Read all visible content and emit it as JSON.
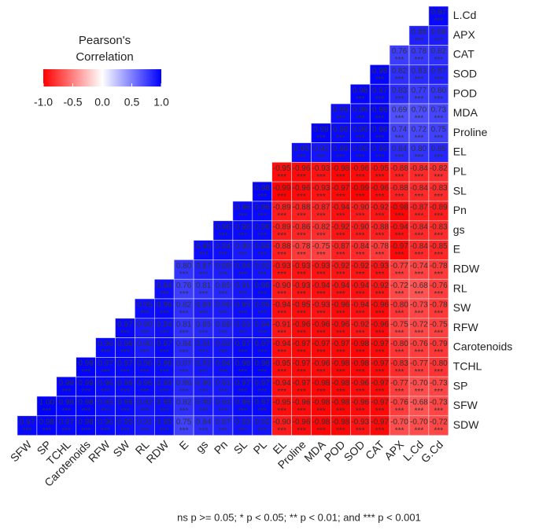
{
  "chart_data": {
    "type": "heatmap",
    "legend_title": [
      "Pearson's",
      "Correlation"
    ],
    "footnote": "ns p >= 0.05; * p < 0.05; ** p < 0.01; and *** p < 0.001",
    "colors": {
      "low": "#ff0000",
      "mid": "#ffffff",
      "high": "#0000ff"
    },
    "clim": [
      -1,
      1
    ],
    "cticks": [
      {
        "value": -1,
        "label": "-1.0"
      },
      -0.5,
      {
        "value": 0,
        "label": "0.0"
      },
      0.5,
      {
        "value": 1,
        "label": "1.0"
      }
    ],
    "columns": [
      "SFW",
      "SP",
      "TCHL",
      "Carotenoids",
      "RFW",
      "SW",
      "RL",
      "RDW",
      "E",
      "gs",
      "Pn",
      "SL",
      "PL",
      "EL",
      "Proline",
      "MDA",
      "POD",
      "SOD",
      "CAT",
      "APX",
      "L.Cd",
      "G.Cd"
    ],
    "rows": [
      {
        "name": "L.Cd",
        "values": [
          0.97
        ],
        "value_labels": [
          "0.97"
        ],
        "sig": [
          "***"
        ]
      },
      {
        "name": "APX",
        "values": [
          0.88,
          0.89
        ],
        "value_labels": [
          "0.88",
          "0.89"
        ],
        "sig": [
          "***",
          "***"
        ]
      },
      {
        "name": "CAT",
        "values": [
          0.76,
          0.78,
          0.82
        ],
        "value_labels": [
          "0.76",
          "0.78",
          "0.82"
        ],
        "sig": [
          "***",
          "***",
          "***"
        ]
      },
      {
        "name": "SOD",
        "values": [
          0.98,
          0.82,
          0.83,
          0.87
        ],
        "value_labels": [
          "0.98",
          "0.82",
          "0.83",
          "0.87"
        ],
        "sig": [
          "***",
          "***",
          "***",
          "***"
        ]
      },
      {
        "name": "POD",
        "values": [
          0.98,
          0.97,
          0.83,
          0.77,
          0.8
        ],
        "value_labels": [
          "0.98",
          "0.97",
          "0.83",
          "0.77",
          "0.80"
        ],
        "sig": [
          "***",
          "***",
          "***",
          "***",
          "***"
        ]
      },
      {
        "name": "MDA",
        "values": [
          0.95,
          0.96,
          0.98,
          0.69,
          0.7,
          0.73
        ],
        "value_labels": [
          "0.95",
          "0.96",
          "0.98",
          "0.69",
          "0.70",
          "0.73"
        ],
        "sig": [
          "***",
          "***",
          "***",
          "***",
          "***",
          "***"
        ]
      },
      {
        "name": "Proline",
        "values": [
          0.99,
          0.96,
          0.96,
          0.98,
          0.74,
          0.72,
          0.75
        ],
        "value_labels": [
          "0.99",
          "0.96",
          "0.96",
          "0.98",
          "0.74",
          "0.72",
          "0.75"
        ],
        "sig": [
          "***",
          "***",
          "***",
          "***",
          "***",
          "***",
          "***"
        ]
      },
      {
        "name": "EL",
        "values": [
          0.95,
          0.92,
          0.96,
          0.96,
          0.96,
          0.84,
          0.8,
          0.85
        ],
        "value_labels": [
          "0.95",
          "0.92",
          "0.96",
          "0.96",
          "0.96",
          "0.84",
          "0.80",
          "0.85"
        ],
        "sig": [
          "***",
          "***",
          "***",
          "***",
          "***",
          "***",
          "***",
          "***"
        ]
      },
      {
        "name": "PL",
        "values": [
          -0.95,
          -0.96,
          -0.93,
          -0.98,
          -0.96,
          -0.95,
          -0.88,
          -0.84,
          -0.82
        ],
        "value_labels": [
          "-0.95",
          "-0.96",
          "-0.93",
          "-0.98",
          "-0.96",
          "-0.95",
          "-0.88",
          "-0.84",
          "-0.82"
        ],
        "sig": [
          "***",
          "***",
          "***",
          "***",
          "***",
          "***",
          "***",
          "***",
          "***"
        ]
      },
      {
        "name": "SL",
        "values": [
          0.98,
          -0.99,
          -0.96,
          -0.93,
          -0.97,
          -0.99,
          -0.96,
          -0.88,
          -0.84,
          -0.83
        ],
        "value_labels": [
          "0.98",
          "-0.99",
          "-0.96",
          "-0.93",
          "-0.97",
          "-0.99",
          "-0.96",
          "-0.88",
          "-0.84",
          "-0.83"
        ],
        "sig": [
          "***",
          "***",
          "***",
          "***",
          "***",
          "***",
          "***",
          "***",
          "***",
          "***"
        ]
      },
      {
        "name": "Pn",
        "values": [
          0.96,
          0.96,
          -0.89,
          -0.88,
          -0.87,
          -0.94,
          -0.9,
          -0.92,
          -0.98,
          -0.87,
          -0.89
        ],
        "value_labels": [
          "0.96",
          "0.96",
          "-0.89",
          "-0.88",
          "-0.87",
          "-0.94",
          "-0.90",
          "-0.92",
          "-0.98",
          "-0.87",
          "-0.89"
        ],
        "sig": [
          "***",
          "***",
          "***",
          "***",
          "***",
          "***",
          "***",
          "***",
          "***",
          "***",
          "***"
        ]
      },
      {
        "name": "gs",
        "values": [
          0.96,
          0.96,
          0.96,
          -0.89,
          -0.86,
          -0.82,
          -0.92,
          -0.9,
          -0.88,
          -0.94,
          -0.84,
          -0.83
        ],
        "value_labels": [
          "0.96",
          "0.96",
          "0.96",
          "-0.89",
          "-0.86",
          "-0.82",
          "-0.92",
          "-0.90",
          "-0.88",
          "-0.94",
          "-0.84",
          "-0.83"
        ],
        "sig": [
          "***",
          "***",
          "***",
          "***",
          "***",
          "***",
          "***",
          "***",
          "***",
          "***",
          "***",
          "***"
        ]
      },
      {
        "name": "E",
        "values": [
          0.95,
          0.94,
          0.9,
          0.94,
          -0.88,
          -0.78,
          -0.75,
          -0.87,
          -0.84,
          -0.78,
          -0.97,
          -0.84,
          -0.85
        ],
        "value_labels": [
          "0.95",
          "0.94",
          "0.90",
          "0.94",
          "-0.88",
          "-0.78",
          "-0.75",
          "-0.87",
          "-0.84",
          "-0.78",
          "-0.97",
          "-0.84",
          "-0.85"
        ],
        "sig": [
          "***",
          "***",
          "***",
          "***",
          "***",
          "***",
          "***",
          "***",
          "***",
          "***",
          "***",
          "***",
          "***"
        ]
      },
      {
        "name": "RDW",
        "values": [
          0.8,
          0.87,
          0.89,
          0.94,
          0.92,
          -0.93,
          -0.93,
          -0.93,
          -0.92,
          -0.92,
          -0.93,
          -0.77,
          -0.74,
          -0.78
        ],
        "value_labels": [
          "0.80",
          "0.87",
          "0.89",
          "0.94",
          "0.92",
          "-0.93",
          "-0.93",
          "-0.93",
          "-0.92",
          "-0.92",
          "-0.93",
          "-0.77",
          "-0.74",
          "-0.78"
        ],
        "sig": [
          "***",
          "***",
          "***",
          "***",
          "***",
          "***",
          "***",
          "***",
          "***",
          "***",
          "***",
          "***",
          "***",
          "***"
        ]
      },
      {
        "name": "RL",
        "values": [
          0.94,
          0.76,
          0.81,
          0.85,
          0.91,
          0.96,
          -0.9,
          -0.93,
          -0.94,
          -0.94,
          -0.94,
          -0.92,
          -0.72,
          -0.68,
          -0.76
        ],
        "value_labels": [
          "0.94",
          "0.76",
          "0.81",
          "0.85",
          "0.91",
          "0.96",
          "-0.90",
          "-0.93",
          "-0.94",
          "-0.94",
          "-0.94",
          "-0.92",
          "-0.72",
          "-0.68",
          "-0.76"
        ],
        "sig": [
          "***",
          "***",
          "***",
          "***",
          "***",
          "***",
          "***",
          "***",
          "***",
          "***",
          "***",
          "***",
          "***",
          "***",
          "***"
        ]
      },
      {
        "name": "SW",
        "values": [
          0.95,
          0.96,
          0.82,
          0.89,
          0.9,
          0.95,
          0.95,
          -0.94,
          -0.95,
          -0.93,
          -0.96,
          -0.94,
          -0.96,
          -0.8,
          -0.73,
          -0.78
        ],
        "value_labels": [
          "0.95",
          "0.96",
          "0.82",
          "0.89",
          "0.90",
          "0.95",
          "0.95",
          "-0.94",
          "-0.95",
          "-0.93",
          "-0.96",
          "-0.94",
          "-0.96",
          "-0.80",
          "-0.73",
          "-0.78"
        ],
        "sig": [
          "***",
          "***",
          "***",
          "***",
          "***",
          "***",
          "***",
          "***",
          "***",
          "***",
          "***",
          "***",
          "***",
          "***",
          "***",
          "***"
        ]
      },
      {
        "name": "RFW",
        "values": [
          0.97,
          0.9,
          0.94,
          0.81,
          0.85,
          0.88,
          0.93,
          0.94,
          -0.91,
          -0.96,
          -0.96,
          -0.96,
          -0.92,
          -0.96,
          -0.75,
          -0.72,
          -0.75
        ],
        "value_labels": [
          "0.97",
          "0.90",
          "0.94",
          "0.81",
          "0.85",
          "0.88",
          "0.93",
          "0.94",
          "-0.91",
          "-0.96",
          "-0.96",
          "-0.96",
          "-0.92",
          "-0.96",
          "-0.75",
          "-0.72",
          "-0.75"
        ],
        "sig": [
          "***",
          "***",
          "***",
          "***",
          "***",
          "***",
          "***",
          "***",
          "***",
          "***",
          "***",
          "***",
          "***",
          "***",
          "***",
          "***",
          "***"
        ]
      },
      {
        "name": "Carotenoids",
        "values": [
          0.96,
          0.96,
          0.9,
          0.97,
          0.84,
          0.91,
          0.92,
          0.97,
          0.97,
          -0.94,
          -0.97,
          -0.97,
          -0.97,
          -0.98,
          -0.97,
          -0.8,
          -0.76,
          -0.79
        ],
        "value_labels": [
          "0.96",
          "0.96",
          "0.90",
          "0.97",
          "0.84",
          "0.91",
          "0.92",
          "0.97",
          "0.97",
          "-0.94",
          "-0.97",
          "-0.97",
          "-0.97",
          "-0.98",
          "-0.97",
          "-0.80",
          "-0.76",
          "-0.79"
        ],
        "sig": [
          "***",
          "***",
          "***",
          "***",
          "***",
          "***",
          "***",
          "***",
          "***",
          "***",
          "***",
          "***",
          "***",
          "***",
          "***",
          "***",
          "***",
          "***"
        ]
      },
      {
        "name": "TCHL",
        "values": [
          0.99,
          0.97,
          0.97,
          0.96,
          0.96,
          0.87,
          0.92,
          0.94,
          0.98,
          0.98,
          -0.95,
          -0.97,
          -0.96,
          -0.98,
          -0.98,
          -0.97,
          -0.83,
          -0.77,
          -0.8
        ],
        "value_labels": [
          "0.99",
          "0.97",
          "0.97",
          "0.96",
          "0.96",
          "0.87",
          "0.92",
          "0.94",
          "0.98",
          "0.98",
          "-0.95",
          "-0.97",
          "-0.96",
          "-0.98",
          "-0.98",
          "-0.97",
          "-0.83",
          "-0.77",
          "-0.80"
        ],
        "sig": [
          "***",
          "***",
          "***",
          "***",
          "***",
          "***",
          "***",
          "***",
          "***",
          "***",
          "***",
          "***",
          "***",
          "***",
          "***",
          "***",
          "***",
          "***",
          "***"
        ]
      },
      {
        "name": "SP",
        "values": [
          0.98,
          0.99,
          0.96,
          0.96,
          0.96,
          0.95,
          0.86,
          0.9,
          0.91,
          0.97,
          0.97,
          -0.94,
          -0.97,
          -0.98,
          -0.98,
          -0.96,
          -0.97,
          -0.77,
          -0.7,
          -0.73
        ],
        "value_labels": [
          "0.98",
          "0.99",
          "0.96",
          "0.96",
          "0.96",
          "0.95",
          "0.86",
          "0.90",
          "0.91",
          "0.97",
          "0.97",
          "-0.94",
          "-0.97",
          "-0.98",
          "-0.98",
          "-0.96",
          "-0.97",
          "-0.77",
          "-0.70",
          "-0.73"
        ],
        "sig": [
          "***",
          "***",
          "***",
          "***",
          "***",
          "***",
          "***",
          "***",
          "***",
          "***",
          "***",
          "***",
          "***",
          "***",
          "***",
          "***",
          "***",
          "***",
          "***",
          "***"
        ]
      },
      {
        "name": "SFW",
        "values": [
          1,
          0.98,
          0.98,
          0.95,
          0.96,
          0.92,
          0.95,
          0.82,
          0.9,
          0.91,
          0.96,
          0.97,
          -0.95,
          -0.96,
          -0.98,
          -0.98,
          -0.96,
          -0.97,
          -0.76,
          -0.68,
          -0.73
        ],
        "value_labels": [
          "1.00",
          "0.98",
          "0.98",
          "0.95",
          "0.96",
          "0.92",
          "0.95",
          "0.82",
          "0.90",
          "0.91",
          "0.96",
          "0.97",
          "-0.95",
          "-0.96",
          "-0.98",
          "-0.98",
          "-0.96",
          "-0.97",
          "-0.76",
          "-0.68",
          "-0.73"
        ],
        "sig": [
          "***",
          "***",
          "***",
          "***",
          "***",
          "***",
          "***",
          "***",
          "***",
          "***",
          "***",
          "***",
          "***",
          "***",
          "***",
          "***",
          "***",
          "***",
          "***",
          "***",
          "***"
        ]
      },
      {
        "name": "SDW",
        "values": [
          0.97,
          0.98,
          0.97,
          0.98,
          0.96,
          0.95,
          0.91,
          0.95,
          0.75,
          0.84,
          0.87,
          0.93,
          0.92,
          -0.9,
          -0.96,
          -0.98,
          -0.98,
          -0.93,
          -0.97,
          -0.7,
          -0.7,
          -0.72
        ],
        "value_labels": [
          "0.97",
          "0.98",
          "0.97",
          "0.98",
          "0.96",
          "0.95",
          "0.91",
          "0.95",
          "0.75",
          "0.84",
          "0.87",
          "0.93",
          "0.92",
          "-0.90",
          "-0.96",
          "-0.98",
          "-0.98",
          "-0.93",
          "-0.97",
          "-0.70",
          "-0.70",
          "-0.72"
        ],
        "sig": [
          "***",
          "***",
          "***",
          "***",
          "***",
          "***",
          "***",
          "***",
          "***",
          "***",
          "***",
          "***",
          "***",
          "***",
          "***",
          "***",
          "***",
          "***",
          "***",
          "***",
          "***",
          "***"
        ]
      }
    ]
  }
}
